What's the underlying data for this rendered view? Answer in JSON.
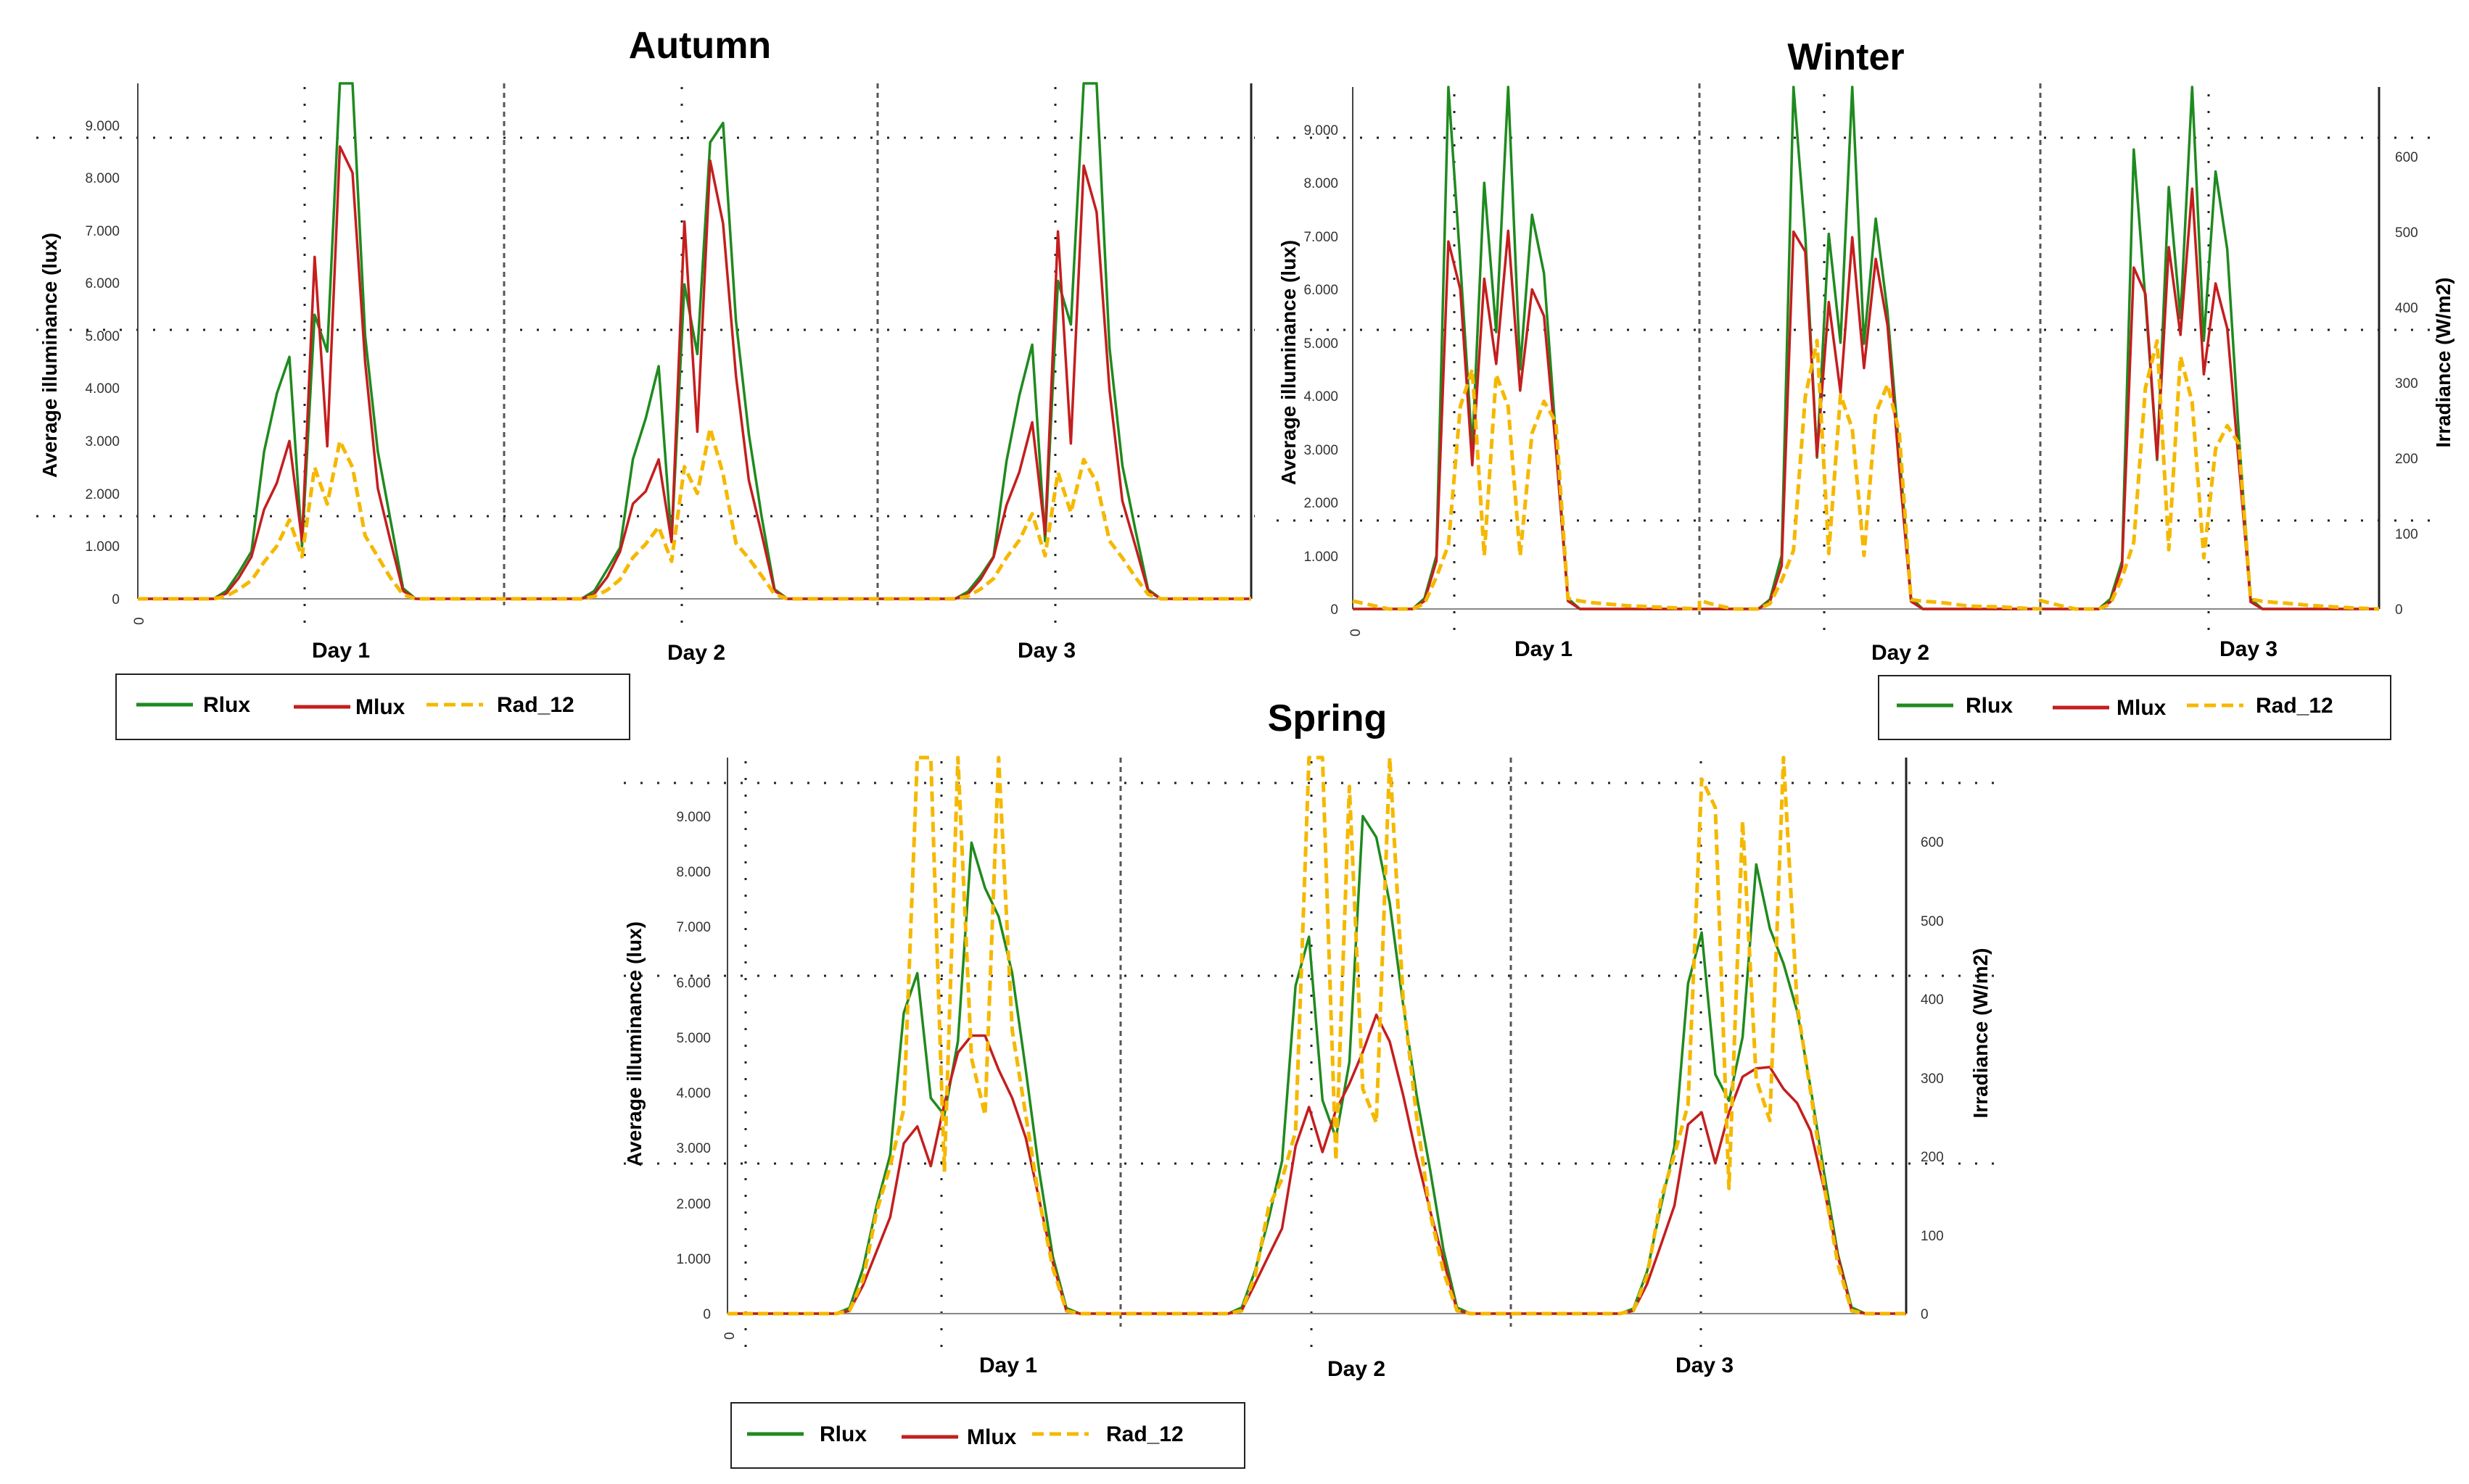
{
  "chart_data": [
    {
      "type": "line",
      "title": "Autumn",
      "ylabel": "Average illuminance (lux)",
      "y2label": "",
      "ylim": [
        0,
        9800
      ],
      "yticks": [
        "0",
        "1.000",
        "2.000",
        "3.000",
        "4.000",
        "5.000",
        "6.000",
        "7.000",
        "8.000",
        "9.000"
      ],
      "x_origin_label": "0",
      "days": [
        "Day 1",
        "Day 2",
        "Day 3"
      ],
      "legend": [
        "Rlux",
        "Mlux",
        "Rad_12"
      ],
      "series": [
        {
          "name": "Rlux",
          "color": "#1f8a1f",
          "profile": [
            0,
            0,
            0,
            0,
            0,
            0,
            0,
            150,
            500,
            900,
            2800,
            3900,
            4600,
            1000,
            5400,
            4700,
            9800,
            9800,
            5000,
            2800,
            1500,
            200,
            0,
            0,
            0,
            0,
            0,
            0,
            0,
            0
          ]
        },
        {
          "name": "Mlux",
          "color": "#c41e1e",
          "profile": [
            0,
            0,
            0,
            0,
            0,
            0,
            0,
            100,
            400,
            800,
            1700,
            2200,
            3000,
            1100,
            6500,
            2900,
            8600,
            8100,
            4500,
            2100,
            1100,
            150,
            0,
            0,
            0,
            0,
            0,
            0,
            0,
            0
          ]
        },
        {
          "name": "Rad_12",
          "color": "#f5b800",
          "profile": [
            0,
            0,
            0,
            0,
            0,
            0,
            0,
            50,
            180,
            350,
            700,
            1000,
            1500,
            800,
            2500,
            1800,
            3000,
            2500,
            1200,
            800,
            400,
            80,
            0,
            0,
            0,
            0,
            0,
            0,
            0,
            0
          ]
        }
      ]
    },
    {
      "type": "line",
      "title": "Winter",
      "ylabel": "Average illuminance (lux)",
      "y2label": "Irradiance (W/m2)",
      "ylim": [
        0,
        9800
      ],
      "yticks": [
        "0",
        "1.000",
        "2.000",
        "3.000",
        "4.000",
        "5.000",
        "6.000",
        "7.000",
        "8.000",
        "9.000"
      ],
      "y2ticks": [
        "0",
        "100",
        "200",
        "300",
        "400",
        "500",
        "600"
      ],
      "x_origin_label": "0",
      "days": [
        "Day 1",
        "Day 2",
        "Day 3"
      ],
      "legend": [
        "Rlux",
        "Mlux",
        "Rad_12"
      ],
      "series": [
        {
          "name": "Rlux",
          "color": "#1f8a1f",
          "profile": [
            0,
            0,
            0,
            0,
            0,
            0,
            200,
            1000,
            9800,
            6500,
            3000,
            8000,
            5200,
            9800,
            4500,
            7400,
            6300,
            3200,
            200,
            0,
            0,
            0,
            0,
            0,
            0,
            0,
            0,
            0,
            0,
            0
          ]
        },
        {
          "name": "Mlux",
          "color": "#c41e1e",
          "profile": [
            0,
            0,
            0,
            0,
            0,
            0,
            150,
            900,
            6900,
            6000,
            2700,
            6200,
            4600,
            7100,
            4100,
            6000,
            5500,
            3000,
            150,
            0,
            0,
            0,
            0,
            0,
            0,
            0,
            0,
            0,
            0,
            0
          ]
        },
        {
          "name": "Rad_12",
          "color": "#f5b800",
          "profile": [
            150,
            100,
            50,
            0,
            0,
            0,
            100,
            600,
            1200,
            3800,
            4500,
            1000,
            4400,
            3800,
            1000,
            3300,
            3900,
            3500,
            200,
            150,
            120,
            100,
            80,
            60,
            50,
            40,
            30,
            20,
            10,
            0
          ]
        }
      ]
    },
    {
      "type": "line",
      "title": "Spring",
      "ylabel": "Average illuminance (lux)",
      "y2label": "Irradiance (W/m2)",
      "ylim": [
        0,
        9800
      ],
      "yticks": [
        "0",
        "1.000",
        "2.000",
        "3.000",
        "4.000",
        "5.000",
        "6.000",
        "7.000",
        "8.000",
        "9.000"
      ],
      "y2ticks": [
        "0",
        "100",
        "200",
        "300",
        "400",
        "500",
        "600"
      ],
      "x_origin_label": "0",
      "days": [
        "Day 1",
        "Day 2",
        "Day 3"
      ],
      "legend": [
        "Rlux",
        "Mlux",
        "Rad_12"
      ],
      "series": [
        {
          "name": "Rlux",
          "color": "#1f8a1f",
          "profile": [
            0,
            0,
            0,
            0,
            0,
            0,
            0,
            0,
            0,
            100,
            800,
            1900,
            2800,
            5300,
            6000,
            3800,
            3500,
            4800,
            8300,
            7500,
            7000,
            6000,
            4300,
            2500,
            1000,
            100,
            0,
            0,
            0,
            0
          ]
        },
        {
          "name": "Mlux",
          "color": "#c41e1e",
          "profile": [
            0,
            0,
            0,
            0,
            0,
            0,
            0,
            0,
            0,
            50,
            500,
            1100,
            1700,
            3000,
            3300,
            2600,
            3700,
            4600,
            4900,
            4900,
            4300,
            3800,
            3100,
            2000,
            900,
            50,
            0,
            0,
            0,
            0
          ]
        },
        {
          "name": "Rad_12",
          "color": "#f5b800",
          "profile": [
            0,
            0,
            0,
            0,
            0,
            0,
            0,
            0,
            0,
            50,
            600,
            1800,
            2600,
            3600,
            9800,
            9800,
            2500,
            9800,
            4500,
            3500,
            9800,
            5000,
            3500,
            2000,
            800,
            50,
            0,
            0,
            0,
            0
          ]
        }
      ]
    }
  ]
}
